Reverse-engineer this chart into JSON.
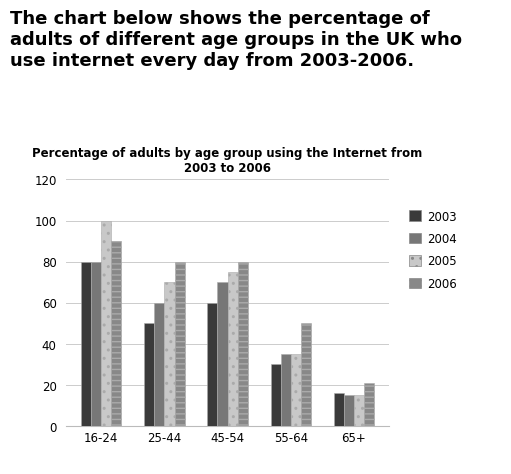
{
  "title": "Percentage of adults by age group using the Internet from\n2003 to 2006",
  "header_text": "The chart below shows the percentage of\nadults of different age groups in the UK who\nuse internet every day from 2003-2006.",
  "categories": [
    "16-24",
    "25-44",
    "45-54",
    "55-64",
    "65+"
  ],
  "years": [
    "2003",
    "2004",
    "2005",
    "2006"
  ],
  "data": {
    "2003": [
      80,
      50,
      60,
      30,
      16
    ],
    "2004": [
      80,
      60,
      70,
      35,
      15
    ],
    "2005": [
      100,
      70,
      75,
      35,
      15
    ],
    "2006": [
      90,
      80,
      80,
      50,
      21
    ]
  },
  "colors": {
    "2003": "#3a3a3a",
    "2004": "#777777",
    "2005": "#c8c8c8",
    "2006": "#888888"
  },
  "hatches": {
    "2003": "",
    "2004": "",
    "2005": "..",
    "2006": "---"
  },
  "ylim": [
    0,
    120
  ],
  "yticks": [
    0,
    20,
    40,
    60,
    80,
    100,
    120
  ],
  "background_color": "#ffffff",
  "header_fontsize": 13,
  "title_fontsize": 8.5,
  "legend_fontsize": 8.5,
  "bar_width": 0.16
}
